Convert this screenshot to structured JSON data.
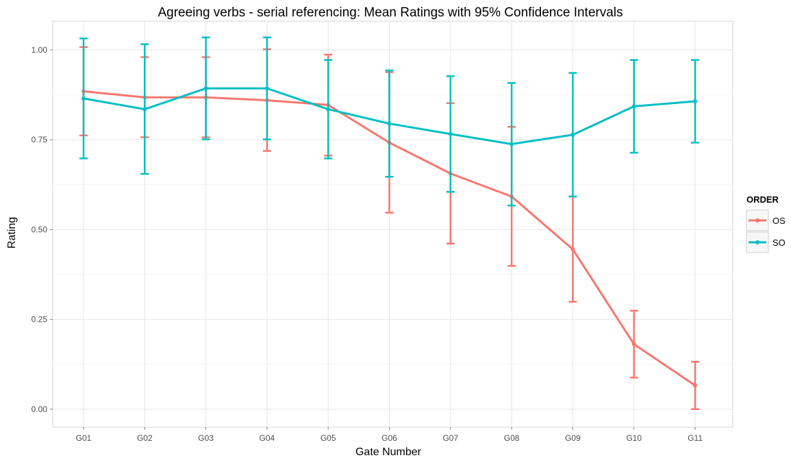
{
  "chart_data": {
    "type": "line",
    "title": "Agreeing verbs - serial referencing: Mean Ratings with 95% Confidence Intervals",
    "xlabel": "Gate Number",
    "ylabel": "Rating",
    "categories": [
      "G01",
      "G02",
      "G03",
      "G04",
      "G05",
      "G06",
      "G07",
      "G08",
      "G09",
      "G10",
      "G11"
    ],
    "ylim": [
      -0.05,
      1.08
    ],
    "yticks": [
      "0.00",
      "0.25",
      "0.50",
      "0.75",
      "1.00"
    ],
    "grid": true,
    "legend": {
      "title": "ORDER",
      "position": "right"
    },
    "series": [
      {
        "name": "OS",
        "color": "#f8766d",
        "values": [
          0.885,
          0.868,
          0.868,
          0.86,
          0.847,
          0.742,
          0.656,
          0.592,
          0.445,
          0.181,
          0.066
        ],
        "lower": [
          0.762,
          0.757,
          0.757,
          0.719,
          0.706,
          0.547,
          0.461,
          0.399,
          0.299,
          0.088,
          0.0
        ],
        "upper": [
          1.008,
          0.98,
          0.98,
          1.002,
          0.987,
          0.938,
          0.852,
          0.786,
          0.592,
          0.274,
          0.132
        ]
      },
      {
        "name": "SO",
        "color": "#00bfc4",
        "values": [
          0.865,
          0.835,
          0.893,
          0.893,
          0.835,
          0.795,
          0.766,
          0.738,
          0.764,
          0.843,
          0.857
        ],
        "lower": [
          0.698,
          0.655,
          0.751,
          0.751,
          0.698,
          0.647,
          0.605,
          0.567,
          0.592,
          0.714,
          0.742
        ],
        "upper": [
          1.032,
          1.016,
          1.035,
          1.035,
          0.972,
          0.943,
          0.927,
          0.908,
          0.936,
          0.972,
          0.972
        ]
      }
    ]
  }
}
